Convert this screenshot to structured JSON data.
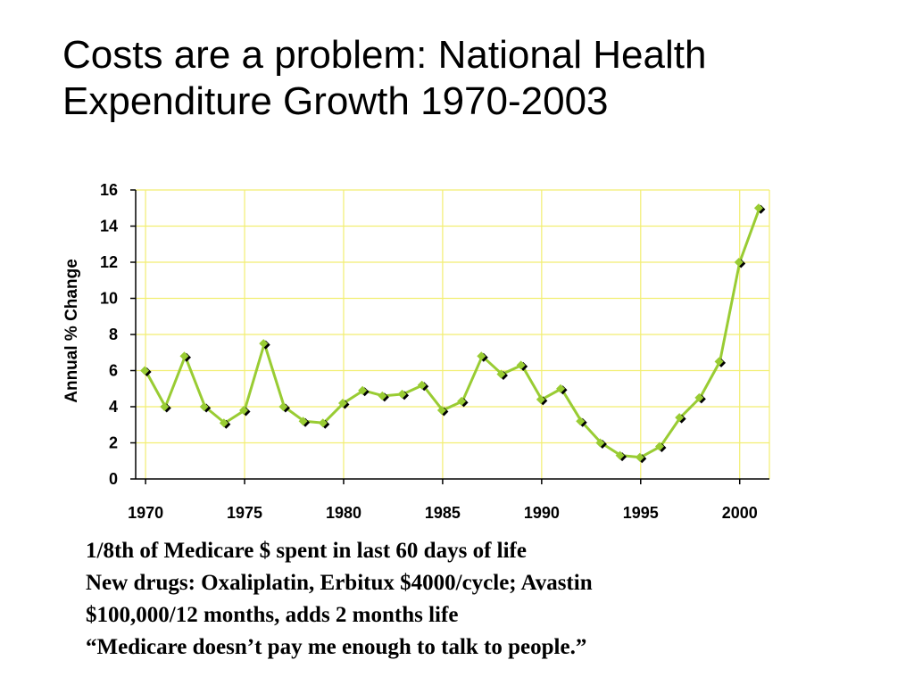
{
  "slide": {
    "title_line1": "Costs are a problem: National Health",
    "title_line2": "Expenditure Growth 1970-2003"
  },
  "notes": [
    "1/8th of Medicare $ spent in last 60 days of life",
    "New drugs: Oxaliplatin, Erbitux $4000/cycle; Avastin",
    "$100,000/12 months, adds 2 months life",
    "“Medicare doesn’t pay me enough to talk to people.”"
  ],
  "colors": {
    "line": "#99CC33",
    "marker": "#000000",
    "grid": "#F2EE72",
    "axis": "#000000"
  },
  "chart_data": {
    "type": "line",
    "title": "",
    "xlabel": "",
    "ylabel": "Annual % Change",
    "x_ticks": [
      "1970",
      "1975",
      "1980",
      "1985",
      "1990",
      "1995",
      "2000"
    ],
    "y_ticks": [
      "0",
      "2",
      "4",
      "6",
      "8",
      "10",
      "12",
      "14",
      "16"
    ],
    "xlim": [
      1969.5,
      2001.5
    ],
    "ylim": [
      0,
      16
    ],
    "grid": true,
    "legend": "none",
    "series": [
      {
        "x": [
          1970,
          1971,
          1972,
          1973,
          1974,
          1975,
          1976,
          1977,
          1978,
          1979,
          1980,
          1981,
          1982,
          1983,
          1984,
          1985,
          1986,
          1987,
          1988,
          1989,
          1990,
          1991,
          1992,
          1993,
          1994,
          1995,
          1996,
          1997,
          1998,
          1999,
          2000,
          2001
        ],
        "values": [
          6.0,
          4.0,
          6.8,
          4.0,
          3.1,
          3.8,
          7.5,
          4.0,
          3.2,
          3.1,
          4.2,
          4.9,
          4.6,
          4.7,
          5.2,
          3.8,
          4.3,
          6.8,
          5.8,
          6.3,
          4.4,
          5.0,
          3.2,
          2.0,
          1.3,
          1.2,
          1.8,
          3.4,
          4.5,
          6.5,
          12.0,
          15.0
        ]
      }
    ]
  }
}
